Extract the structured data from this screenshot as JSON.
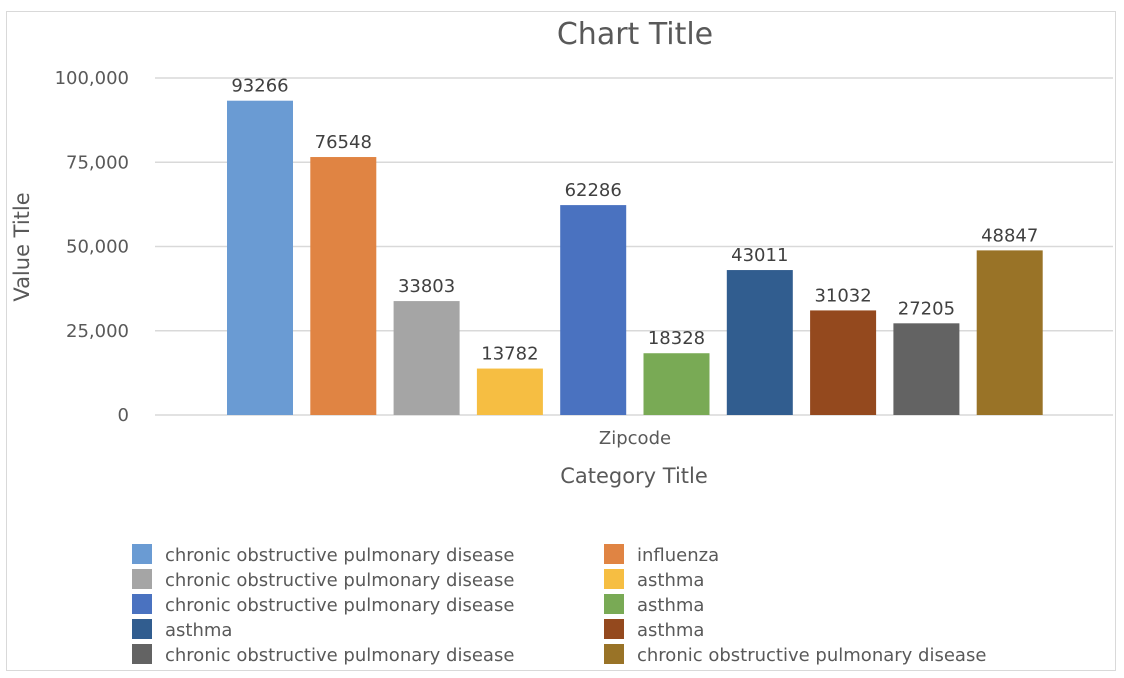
{
  "chart_data": {
    "type": "bar",
    "title": "Chart Title",
    "xlabel": "Category Title",
    "ylabel": "Value Title",
    "categories": [
      "Zipcode"
    ],
    "ylim": [
      0,
      100000
    ],
    "yticks": [
      {
        "value": 0,
        "label": "0"
      },
      {
        "value": 25000,
        "label": "25,000"
      },
      {
        "value": 50000,
        "label": "50,000"
      },
      {
        "value": 75000,
        "label": "75,000"
      },
      {
        "value": 100000,
        "label": "100,000"
      }
    ],
    "grid": true,
    "legend_position": "bottom",
    "series": [
      {
        "name": "chronic obstructive pulmonary disease",
        "values": [
          93266
        ],
        "color": "#6a9bd3"
      },
      {
        "name": "influenza",
        "values": [
          76548
        ],
        "color": "#e08443"
      },
      {
        "name": "chronic obstructive pulmonary disease",
        "values": [
          33803
        ],
        "color": "#a5a5a5"
      },
      {
        "name": "asthma",
        "values": [
          13782
        ],
        "color": "#f6be42"
      },
      {
        "name": "chronic obstructive pulmonary disease",
        "values": [
          62286
        ],
        "color": "#4a72c0"
      },
      {
        "name": "asthma",
        "values": [
          18328
        ],
        "color": "#79aa55"
      },
      {
        "name": "asthma",
        "values": [
          43011
        ],
        "color": "#315d8f"
      },
      {
        "name": "asthma",
        "values": [
          31032
        ],
        "color": "#94491e"
      },
      {
        "name": "chronic obstructive pulmonary disease",
        "values": [
          27205
        ],
        "color": "#636363"
      },
      {
        "name": "chronic obstructive pulmonary disease",
        "values": [
          48847
        ],
        "color": "#997327"
      }
    ]
  }
}
